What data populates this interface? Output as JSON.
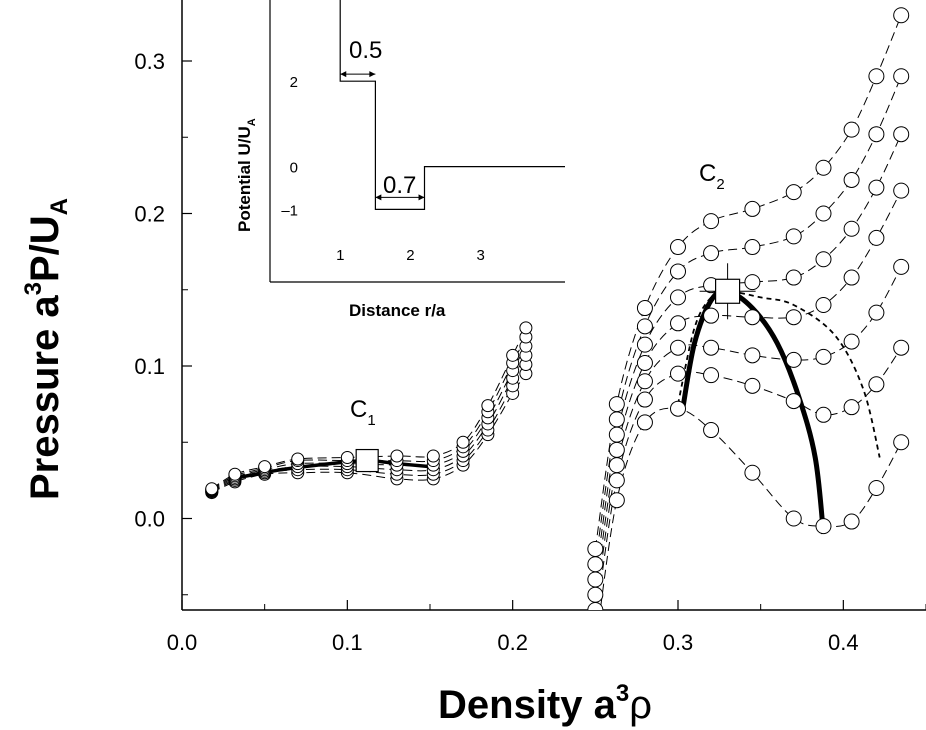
{
  "chart_data": {
    "type": "line",
    "title": "",
    "xlabel": {
      "text": "Density  a",
      "sup": "3",
      "tail": "ρ"
    },
    "ylabel": {
      "text": "Pressure a",
      "sup": "3",
      "mid": "P/U",
      "sub": "A"
    },
    "xlim": [
      0.0,
      0.45
    ],
    "ylim": [
      -0.06,
      0.34
    ],
    "xticks": [
      0.0,
      0.1,
      0.2,
      0.3,
      0.4
    ],
    "xtick_labels": [
      "0.0",
      "0.1",
      "0.2",
      "0.3",
      "0.4"
    ],
    "yticks": [
      0.0,
      0.1,
      0.2,
      0.3
    ],
    "ytick_labels": [
      "0.0",
      "0.1",
      "0.2",
      "0.3"
    ],
    "critical_points": [
      {
        "label": "C",
        "sub": "1",
        "x": 0.112,
        "y": 0.038
      },
      {
        "label": "C",
        "sub": "2",
        "x": 0.33,
        "y": 0.149
      }
    ],
    "low_density_isotherms": [
      {
        "x": [
          0.018,
          0.032,
          0.05,
          0.07,
          0.1,
          0.13,
          0.152,
          0.17,
          0.185,
          0.2,
          0.208
        ],
        "y": [
          0.017,
          0.024,
          0.029,
          0.03,
          0.03,
          0.026,
          0.026,
          0.035,
          0.055,
          0.082,
          0.095
        ]
      },
      {
        "x": [
          0.018,
          0.032,
          0.05,
          0.07,
          0.1,
          0.13,
          0.152,
          0.17,
          0.185,
          0.2,
          0.208
        ],
        "y": [
          0.0175,
          0.025,
          0.03,
          0.032,
          0.032,
          0.029,
          0.029,
          0.038,
          0.058,
          0.087,
          0.101
        ]
      },
      {
        "x": [
          0.018,
          0.032,
          0.05,
          0.07,
          0.1,
          0.13,
          0.152,
          0.17,
          0.185,
          0.2,
          0.208
        ],
        "y": [
          0.018,
          0.026,
          0.031,
          0.034,
          0.034,
          0.032,
          0.032,
          0.041,
          0.062,
          0.092,
          0.107
        ]
      },
      {
        "x": [
          0.018,
          0.032,
          0.05,
          0.07,
          0.1,
          0.13,
          0.152,
          0.17,
          0.185,
          0.2,
          0.208
        ],
        "y": [
          0.0185,
          0.027,
          0.032,
          0.036,
          0.036,
          0.035,
          0.035,
          0.044,
          0.066,
          0.097,
          0.113
        ]
      },
      {
        "x": [
          0.018,
          0.032,
          0.05,
          0.07,
          0.1,
          0.13,
          0.152,
          0.17,
          0.185,
          0.2,
          0.208
        ],
        "y": [
          0.019,
          0.028,
          0.033,
          0.038,
          0.038,
          0.038,
          0.038,
          0.047,
          0.07,
          0.102,
          0.119
        ]
      },
      {
        "x": [
          0.018,
          0.032,
          0.05,
          0.07,
          0.1,
          0.13,
          0.152,
          0.17,
          0.185,
          0.2,
          0.208
        ],
        "y": [
          0.0195,
          0.029,
          0.034,
          0.039,
          0.04,
          0.041,
          0.041,
          0.05,
          0.074,
          0.107,
          0.125
        ]
      }
    ],
    "high_density_isotherms": [
      {
        "x": [
          0.25,
          0.263,
          0.28,
          0.3,
          0.32,
          0.345,
          0.37,
          0.388,
          0.405,
          0.42,
          0.435
        ],
        "y": [
          -0.085,
          0.012,
          0.063,
          0.072,
          0.058,
          0.03,
          0.0,
          -0.005,
          -0.002,
          0.02,
          0.05
        ]
      },
      {
        "x": [
          0.25,
          0.263,
          0.28,
          0.3,
          0.32,
          0.345,
          0.37,
          0.388,
          0.405,
          0.42,
          0.435
        ],
        "y": [
          -0.07,
          0.025,
          0.078,
          0.095,
          0.094,
          0.087,
          0.077,
          0.068,
          0.073,
          0.088,
          0.112
        ]
      },
      {
        "x": [
          0.25,
          0.263,
          0.28,
          0.3,
          0.32,
          0.345,
          0.37,
          0.388,
          0.405,
          0.42,
          0.435
        ],
        "y": [
          -0.06,
          0.035,
          0.09,
          0.112,
          0.112,
          0.107,
          0.104,
          0.106,
          0.116,
          0.135,
          0.165
        ]
      },
      {
        "x": [
          0.25,
          0.263,
          0.28,
          0.3,
          0.32,
          0.345,
          0.37,
          0.388,
          0.405,
          0.42,
          0.435
        ],
        "y": [
          -0.05,
          0.045,
          0.102,
          0.128,
          0.133,
          0.132,
          0.132,
          0.14,
          0.158,
          0.184,
          0.215
        ]
      },
      {
        "x": [
          0.25,
          0.263,
          0.28,
          0.3,
          0.32,
          0.345,
          0.37,
          0.388,
          0.405,
          0.42,
          0.435
        ],
        "y": [
          -0.04,
          0.055,
          0.114,
          0.145,
          0.153,
          0.155,
          0.158,
          0.17,
          0.19,
          0.217,
          0.252
        ]
      },
      {
        "x": [
          0.25,
          0.263,
          0.28,
          0.3,
          0.32,
          0.345,
          0.37,
          0.388,
          0.405,
          0.42,
          0.435
        ],
        "y": [
          -0.03,
          0.065,
          0.126,
          0.162,
          0.174,
          0.178,
          0.185,
          0.2,
          0.222,
          0.252,
          0.29
        ]
      },
      {
        "x": [
          0.25,
          0.263,
          0.28,
          0.3,
          0.32,
          0.345,
          0.37,
          0.388,
          0.405,
          0.42,
          0.435
        ],
        "y": [
          -0.02,
          0.075,
          0.138,
          0.178,
          0.195,
          0.203,
          0.214,
          0.23,
          0.255,
          0.29,
          0.33
        ]
      }
    ],
    "low_density_coexistence": {
      "x": [
        0.03,
        0.06,
        0.09,
        0.112,
        0.13,
        0.15
      ],
      "y": [
        0.026,
        0.032,
        0.036,
        0.038,
        0.036,
        0.034
      ]
    },
    "high_density_coexistence": {
      "x": [
        0.303,
        0.31,
        0.32,
        0.33,
        0.345,
        0.36,
        0.373,
        0.383,
        0.388
      ],
      "y": [
        0.073,
        0.115,
        0.143,
        0.149,
        0.138,
        0.115,
        0.08,
        0.04,
        -0.01
      ]
    },
    "spinodal": {
      "x": [
        0.3,
        0.31,
        0.32,
        0.33,
        0.35,
        0.37,
        0.395,
        0.412,
        0.422
      ],
      "y": [
        0.075,
        0.125,
        0.145,
        0.149,
        0.145,
        0.14,
        0.12,
        0.085,
        0.04
      ]
    },
    "inset": {
      "xlabel": "Distance r/a",
      "ylabel": "Potential  U/U",
      "ylabel_sub": "A",
      "xlim": [
        0,
        4.2
      ],
      "ylim": [
        -2.7,
        3.9
      ],
      "xticks": [
        1,
        2,
        3
      ],
      "xtick_labels": [
        "1",
        "2",
        "3"
      ],
      "yticks": [
        2,
        0,
        -1
      ],
      "ytick_labels": [
        "2",
        "0",
        "–1"
      ],
      "potential_r": [
        1.0,
        1.0,
        1.5,
        1.5,
        2.2,
        2.2,
        4.2
      ],
      "potential_u": [
        3.9,
        2.0,
        2.0,
        -1.0,
        -1.0,
        0.0,
        0.0
      ],
      "shoulder_width_label": "0.5",
      "well_width_label": "0.7"
    }
  }
}
